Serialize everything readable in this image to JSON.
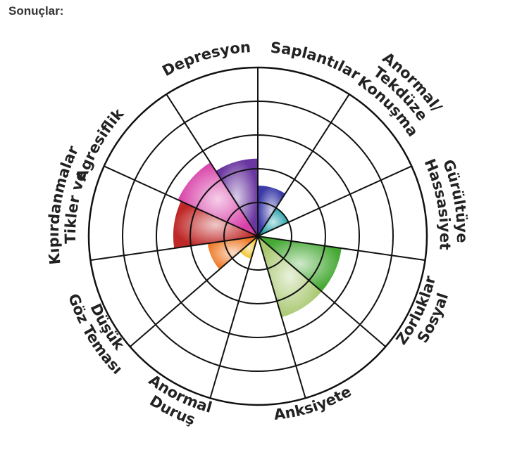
{
  "heading": "Sonuçlar:",
  "chart_data": {
    "type": "polar-area",
    "title": "",
    "rings": 5,
    "max_value": 5,
    "grid": true,
    "categories": [
      {
        "label": [
          "Saplantılar"
        ],
        "value": 1.5,
        "color": "#3a3aa8"
      },
      {
        "label": [
          "Anormal/",
          "Tekdüze",
          "Konuşma"
        ],
        "value": 1.0,
        "color": "#20a0a8"
      },
      {
        "label": [
          "Gürültüye",
          "Hassasiyet"
        ],
        "value": 0.0,
        "color": "#2a8a6a"
      },
      {
        "label": [
          "Sosyal",
          "Zorluklar"
        ],
        "value": 2.5,
        "color": "#44a832"
      },
      {
        "label": [
          "Anksiyete"
        ],
        "value": 2.5,
        "color": "#a8c870"
      },
      {
        "label": [
          "Anormal",
          "Duruş"
        ],
        "value": 0.0,
        "color": "#e0d040"
      },
      {
        "label": [
          "Düşük",
          "Göz Teması"
        ],
        "value": 0.7,
        "color": "#f0c020"
      },
      {
        "label": [
          "Tikler ve",
          "Kıpırdanmalar"
        ],
        "value": 1.5,
        "color": "#ee7a28"
      },
      {
        "label": [
          "Agresiflik"
        ],
        "value": 2.5,
        "color": "#c02828"
      },
      {
        "label": [
          "Depresyon"
        ],
        "value": 2.6,
        "color": "#d840a8"
      },
      {
        "label": [
          "Saplantılar"
        ],
        "value": 2.3,
        "color": "#6a36a0"
      }
    ]
  }
}
